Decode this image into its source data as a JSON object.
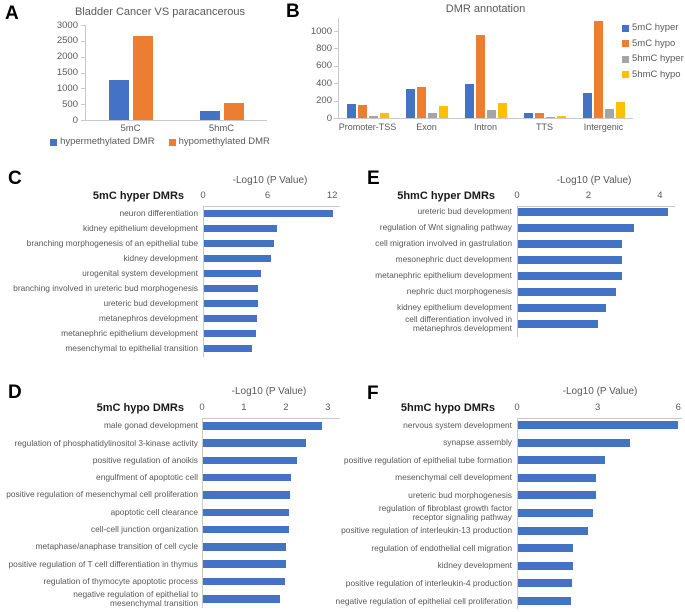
{
  "chart_data": [
    {
      "id": "A",
      "panel_letter": "A",
      "type": "bar",
      "title": "Bladder Cancer VS paracancerous",
      "categories": [
        "5mC",
        "5hmC"
      ],
      "series": [
        {
          "name": "hypermethylated DMR",
          "color": "#4472C4",
          "values": [
            1250,
            290
          ]
        },
        {
          "name": "hypomethylated DMR",
          "color": "#ED7D31",
          "values": [
            2650,
            550
          ]
        }
      ],
      "ylim": [
        0,
        3000
      ],
      "yticks": [
        0,
        500,
        1000,
        1500,
        2000,
        2500,
        3000
      ],
      "legend_position": "bottom",
      "grid": false
    },
    {
      "id": "B",
      "panel_letter": "B",
      "type": "bar",
      "title": "DMR annotation",
      "categories": [
        "Promoter-TSS",
        "Exon",
        "Intron",
        "TTS",
        "Intergenic"
      ],
      "series": [
        {
          "name": "5mC hyper",
          "color": "#4472C4",
          "values": [
            160,
            330,
            395,
            60,
            285
          ]
        },
        {
          "name": "5mC hypo",
          "color": "#ED7D31",
          "values": [
            145,
            360,
            955,
            60,
            1115
          ]
        },
        {
          "name": "5hmC hyper",
          "color": "#A5A5A5",
          "values": [
            25,
            55,
            90,
            10,
            100
          ]
        },
        {
          "name": "5hmC hypo",
          "color": "#FFC000",
          "values": [
            55,
            135,
            175,
            20,
            185
          ]
        }
      ],
      "ylim": [
        0,
        1150
      ],
      "yticks": [
        0,
        200,
        400,
        600,
        800,
        1000
      ],
      "legend_position": "right",
      "grid": false
    },
    {
      "id": "C",
      "panel_letter": "C",
      "type": "bar-horizontal",
      "title": "5mC hyper DMRs",
      "axis_title": "-Log10 (P Value)",
      "bar_color": "#4472C4",
      "categories": [
        "neuron differentiation",
        "kidney epithelium development",
        "branching morphogenesis of an epithelial tube",
        "kidney development",
        "urogenital system development",
        "branching involved in ureteric bud morphogenesis",
        "ureteric bud development",
        "metanephros development",
        "metanephric epithelium development",
        "mesenchymal to epithelial transition"
      ],
      "values": [
        12.0,
        6.8,
        6.5,
        6.2,
        5.3,
        5.0,
        5.0,
        4.9,
        4.8,
        4.5
      ],
      "xticks": [
        0,
        6,
        12
      ],
      "xlim": [
        0,
        12.45
      ],
      "grid": false
    },
    {
      "id": "D",
      "panel_letter": "D",
      "type": "bar-horizontal",
      "title": "5mC hypo DMRs",
      "axis_title": "-Log10 (P Value)",
      "bar_color": "#4472C4",
      "categories": [
        "male gonad development",
        "regulation of phosphatidylinositol 3-kinase activity",
        "positive regulation of anoikis",
        "engulfment of apoptotic cell",
        "positive regulation of mesenchymal cell proliferation",
        "apoptotic cell clearance",
        "cell-cell junction organization",
        "metaphase/anaphase transition of cell cycle",
        "positive regulation of T cell differentiation in thymus",
        "regulation of thymocyte apoptotic process",
        "negative regulation of epithelial to\nmesenchymal transition"
      ],
      "values": [
        2.85,
        2.45,
        2.25,
        2.1,
        2.07,
        2.05,
        2.05,
        1.97,
        1.97,
        1.95,
        1.83
      ],
      "xticks": [
        0,
        1,
        2,
        3
      ],
      "xlim": [
        0,
        3.22
      ],
      "grid": false
    },
    {
      "id": "E",
      "panel_letter": "E",
      "type": "bar-horizontal",
      "title": "5hmC hyper DMRs",
      "axis_title": "-Log10 (P Value)",
      "bar_color": "#4472C4",
      "categories": [
        "ureteric bud development",
        "regulation of Wnt signaling pathway",
        "cell migration involved in gastrulation",
        "mesonephric duct development",
        "metanephric epithelium development",
        "nephric duct morphogenesis",
        "kidney epithelium development",
        "cell differentiation involved in\nmetanephros development"
      ],
      "values": [
        4.2,
        3.25,
        2.9,
        2.9,
        2.9,
        2.75,
        2.45,
        2.23
      ],
      "xticks": [
        0,
        2,
        4
      ],
      "xlim": [
        0,
        4.31
      ],
      "grid": false
    },
    {
      "id": "F",
      "panel_letter": "F",
      "type": "bar-horizontal",
      "title": "5hmC hypo DMRs",
      "axis_title": "-Log10 (P Value)",
      "bar_color": "#4472C4",
      "categories": [
        "nervous system development",
        "synapse assembly",
        "positive regulation of epithelial tube formation",
        "mesenchymal cell development",
        "ureteric bud morphogenesis",
        "regulation of fibroblast growth factor\nreceptor signaling pathway",
        "positive regulation of interleukin-13 production",
        "regulation of endothelial cell migration",
        "kidney development",
        "positive regulation of interleukin-4 production",
        "negative regulation of epithelial cell proliferation"
      ],
      "values": [
        5.95,
        4.15,
        3.25,
        2.9,
        2.9,
        2.8,
        2.6,
        2.05,
        2.03,
        2.0,
        1.97
      ],
      "xticks": [
        0,
        3,
        6
      ],
      "xlim": [
        0,
        6.1
      ],
      "grid": false
    }
  ]
}
